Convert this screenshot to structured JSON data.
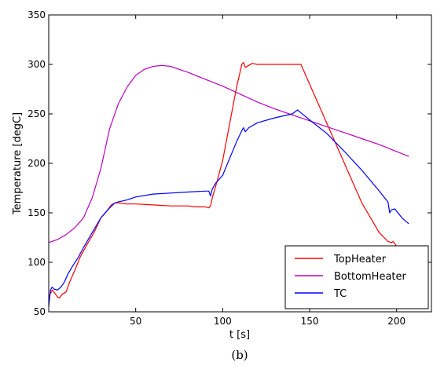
{
  "chart_data": {
    "type": "line",
    "xlabel": "t [s]",
    "ylabel": "Temperature [degC]",
    "caption": "(b)",
    "xlim": [
      0,
      220
    ],
    "ylim": [
      50,
      350
    ],
    "xticks": [
      50,
      100,
      150,
      200
    ],
    "yticks": [
      50,
      100,
      150,
      200,
      250,
      300,
      350
    ],
    "grid": false,
    "legend_position": "bottom-right",
    "series": [
      {
        "name": "TopHeater",
        "color": "#ff0000",
        "x": [
          0,
          2,
          3,
          5,
          6,
          8,
          10,
          12,
          15,
          18,
          22,
          26,
          30,
          33,
          36,
          38,
          40,
          45,
          50,
          60,
          70,
          80,
          85,
          90,
          92,
          93,
          94,
          96,
          100,
          104,
          108,
          111,
          112,
          113,
          115,
          117,
          120,
          130,
          140,
          145,
          150,
          160,
          170,
          180,
          190,
          195,
          197,
          198,
          199,
          200,
          201
        ],
        "y": [
          65,
          72,
          70,
          65,
          64,
          68,
          70,
          80,
          92,
          105,
          118,
          130,
          145,
          151,
          158,
          160,
          160,
          159,
          159,
          158,
          157,
          157,
          156,
          156,
          155,
          157,
          165,
          177,
          203,
          240,
          277,
          300,
          302,
          297,
          299,
          301,
          300,
          300,
          300,
          300,
          280,
          240,
          200,
          160,
          130,
          121,
          120,
          121,
          119,
          116,
          113
        ]
      },
      {
        "name": "BottomHeater",
        "color": "#bf00bf",
        "x": [
          0,
          5,
          10,
          15,
          20,
          25,
          30,
          35,
          40,
          45,
          50,
          55,
          60,
          65,
          70,
          75,
          80,
          90,
          100,
          110,
          120,
          130,
          140,
          150,
          160,
          170,
          180,
          190,
          200,
          207
        ],
        "y": [
          120,
          123,
          128,
          135,
          145,
          165,
          195,
          235,
          260,
          277,
          289,
          295,
          298,
          299,
          298,
          295,
          292,
          285,
          278,
          270,
          262,
          255,
          249,
          243,
          237,
          231,
          225,
          219,
          212,
          207
        ]
      },
      {
        "name": "TC",
        "color": "#0000ff",
        "x": [
          0,
          1,
          2,
          3,
          5,
          7,
          9,
          11,
          14,
          17,
          20,
          25,
          30,
          35,
          38,
          40,
          45,
          50,
          60,
          70,
          80,
          90,
          92,
          93,
          94,
          96,
          100,
          104,
          108,
          111,
          112,
          113,
          115,
          120,
          130,
          140,
          143,
          145,
          150,
          160,
          170,
          180,
          190,
          195,
          196,
          197,
          199,
          203,
          207
        ],
        "y": [
          55,
          72,
          75,
          73,
          72,
          75,
          80,
          88,
          97,
          105,
          115,
          130,
          145,
          155,
          160,
          161,
          163,
          166,
          169,
          170,
          171,
          172,
          172,
          167,
          174,
          180,
          188,
          205,
          222,
          233,
          236,
          232,
          236,
          241,
          246,
          250,
          254,
          251,
          244,
          230,
          212,
          193,
          172,
          161,
          150,
          153,
          154,
          145,
          139
        ]
      }
    ]
  }
}
